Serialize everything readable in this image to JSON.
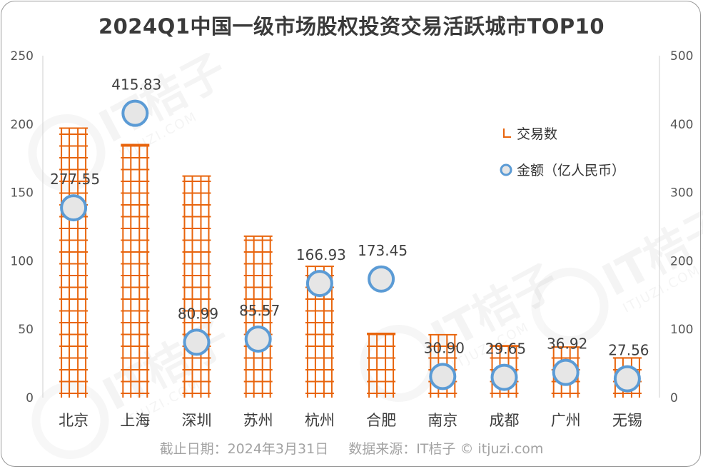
{
  "title": "2024Q1中国一级市场股权投资交易活跃城市TOP10",
  "footer": {
    "date_text": "截止日期：2024年3月31日",
    "source_text": "数据来源：IT桔子 © itjuzi.com"
  },
  "watermark": {
    "text": "IT桔子",
    "sub": "ITJUZI.COM"
  },
  "colors": {
    "bar": "#e8640c",
    "bubble_stroke": "#5b9bd5",
    "bubble_fill": "#e6e6e6",
    "axis_text": "#555555",
    "label_text": "#404040"
  },
  "chart_data": {
    "type": "bar",
    "title": "2024Q1中国一级市场股权投资交易活跃城市TOP10",
    "categories": [
      "北京",
      "上海",
      "深圳",
      "苏州",
      "杭州",
      "合肥",
      "南京",
      "成都",
      "广州",
      "无锡"
    ],
    "series": [
      {
        "name": "交易数",
        "type": "bar",
        "axis": "left",
        "values": [
          197,
          185,
          162,
          118,
          96,
          47,
          46,
          38,
          37,
          29
        ]
      },
      {
        "name": "金额（亿人民币）",
        "type": "scatter",
        "axis": "right",
        "values": [
          277.55,
          415.83,
          80.99,
          85.57,
          166.93,
          173.45,
          30.9,
          29.65,
          36.92,
          27.56
        ],
        "labels": [
          "277.55",
          "415.83",
          "80.99",
          "85.57",
          "166.93",
          "173.45",
          "30.90",
          "29.65",
          "36.92",
          "27.56"
        ]
      }
    ],
    "y_left": {
      "min": 0,
      "max": 250,
      "ticks": [
        "0",
        "50",
        "100",
        "150",
        "200",
        "250"
      ]
    },
    "y_right": {
      "min": 0,
      "max": 500,
      "ticks": [
        "0",
        "100",
        "200",
        "300",
        "400",
        "500"
      ]
    },
    "legend_position": "right",
    "grid": false
  }
}
